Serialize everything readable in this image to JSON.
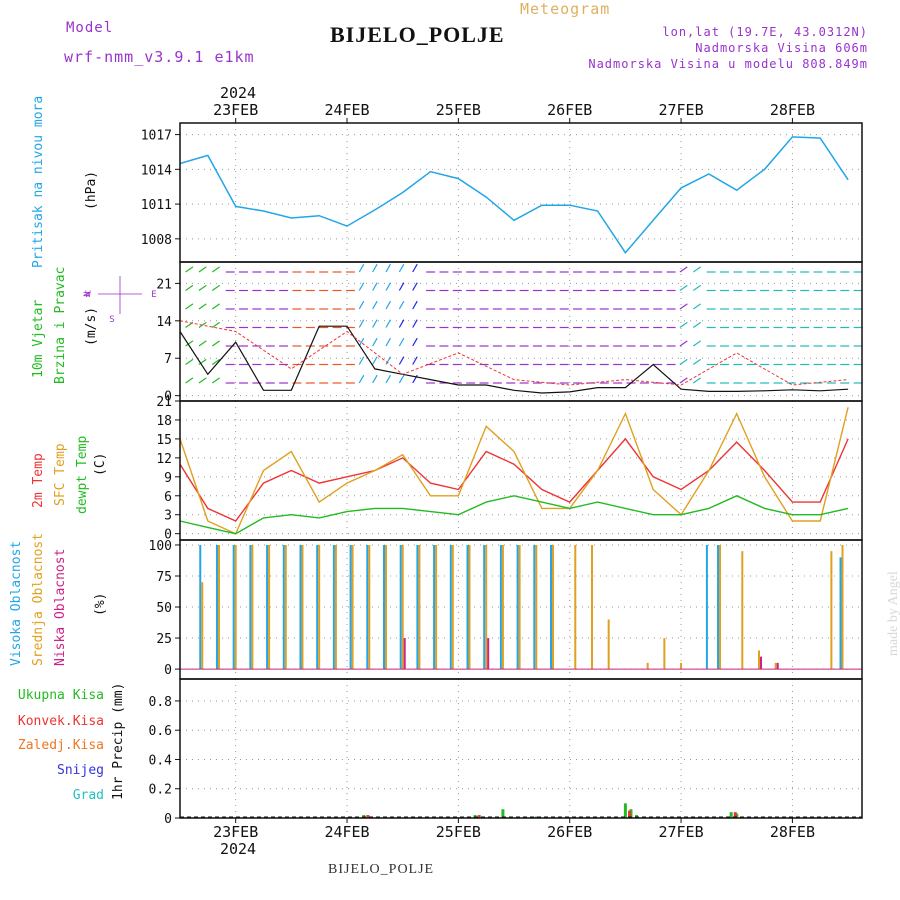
{
  "header": {
    "model_label": "Model",
    "model_name": "wrf-nmm_v3.9.1  e1km",
    "product": "Meteogram",
    "station": "BIJELO_POLJE",
    "lonlat": "lon,lat (19.7E, 43.0312N)",
    "elevation": "Nadmorska Visina 606m",
    "model_elevation": "Nadmorska Visina u modelu 808.849m"
  },
  "footer": {
    "station": "BIJELO_POLJE",
    "watermark": "made by Angel"
  },
  "colors": {
    "pressure": "#22a6e8",
    "temp2m": "#ee3333",
    "sfc": "#e0a020",
    "dewpt": "#22bb22",
    "high": "#22a6e8",
    "mid": "#e0a020",
    "low": "#cc2288",
    "purple": "#9933cc"
  },
  "axes": {
    "top_year": "2024",
    "bottom_year": "2024",
    "dates": [
      "23FEB",
      "24FEB",
      "25FEB",
      "26FEB",
      "27FEB",
      "28FEB"
    ]
  },
  "panels": {
    "pressure": {
      "title": "Pritisak na nivou mora",
      "unit": "(hPa)",
      "ticks": [
        "1008",
        "1011",
        "1014",
        "1017"
      ]
    },
    "wind": {
      "title1": "10m Vjetar",
      "title2": "Brzina i Pravac",
      "unit": "(m/s)",
      "ticks": [
        "0",
        "7",
        "14",
        "21"
      ],
      "compass": {
        "n": "N",
        "s": "S",
        "e": "E",
        "w": "W"
      }
    },
    "temp": {
      "title1": "2m Temp",
      "title2": "SFC Temp",
      "title3": "dewpt Temp",
      "unit": "(C)",
      "ticks": [
        "0",
        "3",
        "6",
        "9",
        "12",
        "15",
        "18",
        "21"
      ]
    },
    "cloud": {
      "title1": "Visoka Oblacnost",
      "title2": "Srednja Oblacnost",
      "title3": "Niska Oblacnost",
      "unit": "(%)",
      "ticks": [
        "0",
        "25",
        "50",
        "75",
        "100"
      ]
    },
    "precip": {
      "ylabel": "1hr Precip (mm)",
      "ticks": [
        "0",
        "0.2",
        "0.4",
        "0.6",
        "0.8"
      ],
      "legend": [
        "Ukupna Kisa",
        "Konvek.Kisa",
        "Zaledj.Kisa",
        "Snijeg",
        "Grad"
      ],
      "legend_colors": [
        "#22bb22",
        "#ee3333",
        "#ee7722",
        "#3333dd",
        "#22c0c0"
      ]
    }
  },
  "chart_data": [
    {
      "type": "line",
      "title": "Pritisak na nivou mora",
      "ylabel": "(hPa)",
      "ylim": [
        1006,
        1018
      ],
      "x_unit": "days since 22FEB 12Z",
      "series": [
        {
          "name": "Pritisak na nivou mora",
          "x": [
            0,
            0.25,
            0.5,
            0.75,
            1.0,
            1.25,
            1.5,
            1.75,
            2.0,
            2.25,
            2.5,
            2.75,
            3.0,
            3.25,
            3.5,
            3.75,
            4.0,
            4.25,
            4.5,
            4.75,
            5.0,
            5.25,
            5.5,
            5.75,
            6.0
          ],
          "y": [
            1014.5,
            1015.2,
            1010.8,
            1010.4,
            1009.8,
            1010.0,
            1009.1,
            1010.5,
            1012.0,
            1013.8,
            1013.2,
            1011.6,
            1009.6,
            1010.9,
            1010.9,
            1010.4,
            1006.8,
            1009.6,
            1012.4,
            1013.6,
            1012.2,
            1014.0,
            1016.8,
            1016.7,
            1013.1
          ]
        }
      ]
    },
    {
      "type": "line",
      "title": "10m Vjetar Brzina i Pravac",
      "ylabel": "(m/s)",
      "ylim": [
        0,
        25
      ],
      "series": [
        {
          "name": "10m Vjetar",
          "x": [
            0,
            0.25,
            0.5,
            0.75,
            1.0,
            1.25,
            1.5,
            1.75,
            2.0,
            2.25,
            2.5,
            2.75,
            3.0,
            3.25,
            3.5,
            3.75,
            4.0,
            4.25,
            4.5,
            4.75,
            5.0,
            5.25,
            5.5,
            5.75,
            6.0
          ],
          "y": [
            12,
            4,
            10,
            1,
            1,
            13,
            13,
            5,
            4,
            3,
            2,
            2,
            1,
            0.5,
            0.7,
            1.5,
            1.5,
            5.8,
            1.2,
            0.8,
            0.8,
            0.9,
            1.1,
            0.9,
            1.2
          ]
        },
        {
          "name": "gust",
          "x": [
            0,
            0.5,
            1.0,
            1.5,
            2.0,
            2.5,
            3.0,
            3.5,
            4.0,
            4.5,
            5.0,
            5.5,
            6.0
          ],
          "y": [
            14,
            12,
            5,
            12,
            4,
            8,
            3,
            2,
            3,
            2,
            8,
            2,
            3
          ]
        }
      ]
    },
    {
      "type": "line",
      "title": "2m Temp / SFC Temp / dewpt Temp",
      "ylabel": "(C)",
      "ylim": [
        -1,
        21
      ],
      "x": [
        0,
        0.25,
        0.5,
        0.75,
        1.0,
        1.25,
        1.5,
        1.75,
        2.0,
        2.25,
        2.5,
        2.75,
        3.0,
        3.25,
        3.5,
        3.75,
        4.0,
        4.25,
        4.5,
        4.75,
        5.0,
        5.25,
        5.5,
        5.75,
        6.0
      ],
      "series": [
        {
          "name": "2m Temp",
          "values": [
            11,
            4,
            2,
            8,
            10,
            8,
            9,
            10,
            12,
            8,
            7,
            13,
            11,
            7,
            5,
            10,
            15,
            9,
            7,
            10,
            14.5,
            10,
            5,
            5,
            15
          ]
        },
        {
          "name": "SFC Temp",
          "values": [
            15,
            2,
            0,
            10,
            13,
            5,
            8,
            10,
            12.5,
            6,
            6,
            17,
            13,
            4,
            4,
            10,
            19,
            7,
            3,
            10,
            19,
            9,
            2,
            2,
            20
          ]
        },
        {
          "name": "dewpt Temp",
          "values": [
            2,
            1,
            0,
            2.5,
            3,
            2.5,
            3.5,
            4,
            4,
            3.5,
            3,
            5,
            6,
            5,
            4,
            5,
            4,
            3,
            3,
            4,
            6,
            4,
            3,
            3,
            4
          ]
        }
      ]
    },
    {
      "type": "bar",
      "title": "Oblacnost",
      "ylabel": "(%)",
      "ylim": [
        0,
        100
      ],
      "x": [
        0.2,
        0.35,
        0.5,
        0.65,
        0.8,
        0.95,
        1.1,
        1.25,
        1.4,
        1.55,
        1.7,
        1.85,
        2.0,
        2.15,
        2.3,
        2.45,
        2.6,
        2.75,
        2.9,
        3.05,
        3.2,
        3.35,
        3.55,
        3.7,
        3.85,
        4.2,
        4.35,
        4.5,
        4.75,
        4.85,
        5.05,
        5.2,
        5.35,
        5.5,
        5.65,
        5.85,
        5.95
      ],
      "series": [
        {
          "name": "Visoka Oblacnost",
          "values": [
            100,
            100,
            100,
            100,
            100,
            100,
            100,
            100,
            100,
            100,
            100,
            100,
            100,
            100,
            100,
            100,
            100,
            100,
            100,
            100,
            100,
            100,
            0,
            0,
            0,
            0,
            0,
            0,
            100,
            100,
            0,
            0,
            0,
            0,
            0,
            0,
            90
          ]
        },
        {
          "name": "Srednja Oblacnost",
          "values": [
            70,
            100,
            100,
            100,
            100,
            100,
            100,
            100,
            100,
            100,
            100,
            100,
            100,
            100,
            100,
            100,
            100,
            100,
            100,
            100,
            100,
            100,
            100,
            100,
            40,
            5,
            25,
            5,
            0,
            100,
            95,
            15,
            5,
            0,
            0,
            95,
            100
          ]
        },
        {
          "name": "Niska Oblacnost",
          "values": [
            0,
            0,
            0,
            0,
            0,
            0,
            0,
            0,
            0,
            0,
            0,
            0,
            25,
            0,
            0,
            0,
            0,
            25,
            0,
            0,
            0,
            0,
            0,
            0,
            0,
            0,
            0,
            0,
            0,
            0,
            0,
            10,
            5,
            0,
            0,
            0,
            0
          ]
        }
      ]
    },
    {
      "type": "bar",
      "title": "1hr Precip",
      "ylabel": "1hr Precip (mm)",
      "ylim": [
        0,
        0.95
      ],
      "series": [
        {
          "name": "Ukupna Kisa",
          "x": [
            1.65,
            2.65,
            2.78,
            2.9,
            3.2,
            4.0,
            4.05,
            4.1,
            4.95,
            5.0
          ],
          "y": [
            0.02,
            0.02,
            0.01,
            0.06,
            0.01,
            0.1,
            0.06,
            0.02,
            0.04,
            0.03
          ]
        },
        {
          "name": "Konvek.Kisa",
          "x": [
            1.66,
            2.66,
            4.01,
            4.96
          ],
          "y": [
            0.02,
            0.02,
            0.05,
            0.04
          ]
        },
        {
          "name": "Zaledj.Kisa",
          "x": [],
          "y": []
        },
        {
          "name": "Snijeg",
          "x": [],
          "y": []
        },
        {
          "name": "Grad",
          "x": [],
          "y": []
        }
      ]
    }
  ]
}
